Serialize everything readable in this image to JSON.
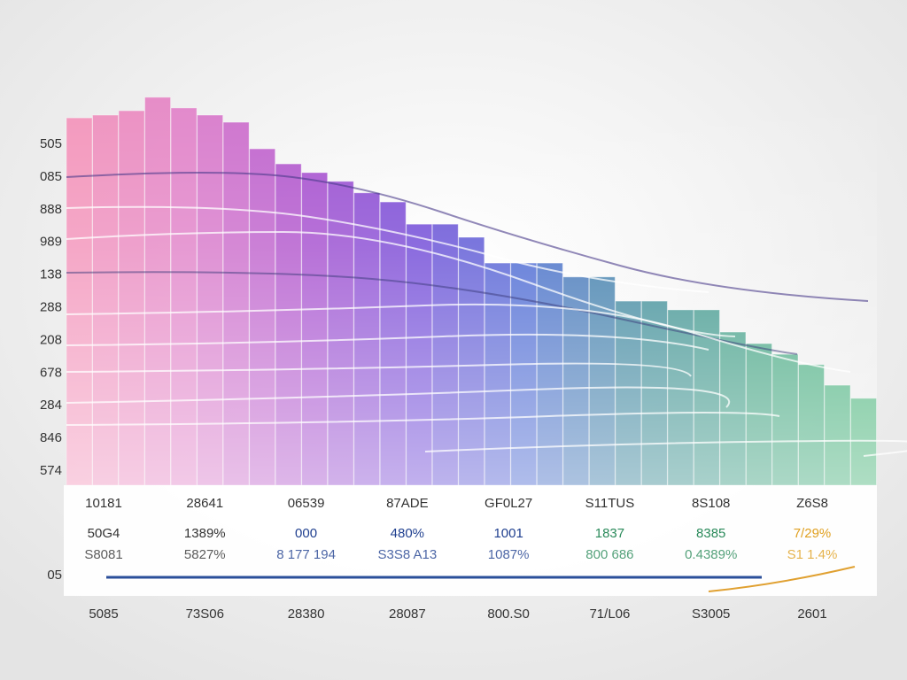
{
  "chart_data": {
    "type": "bar",
    "axis_labels": [
      "505",
      "085",
      "888",
      "989",
      "138",
      "288",
      "208",
      "678",
      "284",
      "846",
      "574"
    ],
    "values": [
      92.6,
      93.3,
      94.4,
      97.8,
      95.1,
      93.3,
      91.5,
      84.8,
      81,
      78.8,
      76.6,
      73.7,
      71.4,
      65.8,
      65.8,
      62.5,
      56,
      56,
      56,
      52.5,
      52.5,
      46.4,
      46.4,
      44.2,
      44.2,
      38.6,
      35.7,
      33,
      30.4,
      25.2,
      21.9
    ],
    "ylim": [
      0,
      100
    ],
    "palette": [
      "#f48fb8",
      "#e07cc8",
      "#a848cc",
      "#6a3fd6",
      "#3d5fd0",
      "#2a7f90",
      "#2f9a78",
      "#3bb070"
    ],
    "table": {
      "row_label": "05",
      "header": [
        "10181",
        "28641",
        "06539",
        "87ADE",
        "GF0L27",
        "S11TUS",
        "8S108",
        "Z6S8"
      ],
      "values": [
        "50G4",
        "1389%",
        "000",
        "480%",
        "1001",
        "1837",
        "8385",
        "7/29%"
      ],
      "value_colors": [
        "#333333",
        "#333333",
        "#1f3f8f",
        "#1f3f8f",
        "#1f3f8f",
        "#2a8a5a",
        "#2a8a5a",
        "#e0a020"
      ],
      "sub": [
        "S8081",
        "5827%",
        "8 177 194",
        "S3S8 A13",
        "1087%",
        "800 686",
        "0.4389%",
        "S1 1.4%"
      ]
    },
    "x_labels": [
      "5085",
      "73S06",
      "28380",
      "28087",
      "800.S0",
      "71/L06",
      "S3005",
      "2601"
    ]
  }
}
